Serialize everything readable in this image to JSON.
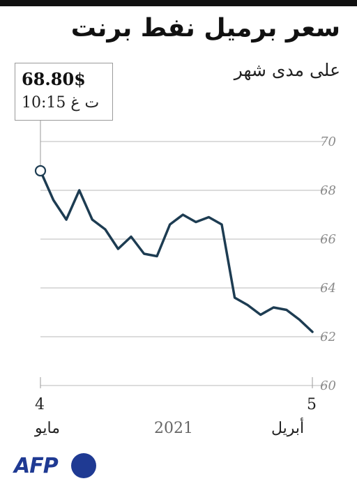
{
  "title": "سعر برميل نفط برنت",
  "subtitle": "على مدى شهر",
  "callout": {
    "price": "68.80$",
    "time": "10:15 ت غ"
  },
  "x_axis": {
    "start_day": "4",
    "start_month": "مايو",
    "end_day": "5",
    "end_month": "أبريل",
    "year": "2021"
  },
  "colors": {
    "line": "#1d3c52",
    "grid": "#c8c8c8",
    "tick_text": "#8a8a8a",
    "brand": "#1f3a93"
  },
  "logo": {
    "text": "AFP"
  },
  "chart_data": {
    "type": "line",
    "title": "سعر برميل نفط برنت",
    "subtitle": "على مدى شهر",
    "xlabel": "",
    "ylabel": "",
    "ylim": [
      60,
      70
    ],
    "yticks": [
      70,
      68,
      66,
      64,
      62,
      60
    ],
    "grid": true,
    "time_direction": "right-to-left",
    "series": [
      {
        "points_oldest_to_newest": [
          62.2,
          62.7,
          63.1,
          63.2,
          62.9,
          63.3,
          63.6,
          66.6,
          66.9,
          66.7,
          67.0,
          66.6,
          65.3,
          65.4,
          66.1,
          65.6,
          66.4,
          66.8,
          68.0,
          66.8,
          67.6,
          68.8
        ]
      }
    ],
    "annotation": {
      "value": 68.8,
      "label": "68.80$",
      "time": "10:15 ت غ"
    }
  }
}
